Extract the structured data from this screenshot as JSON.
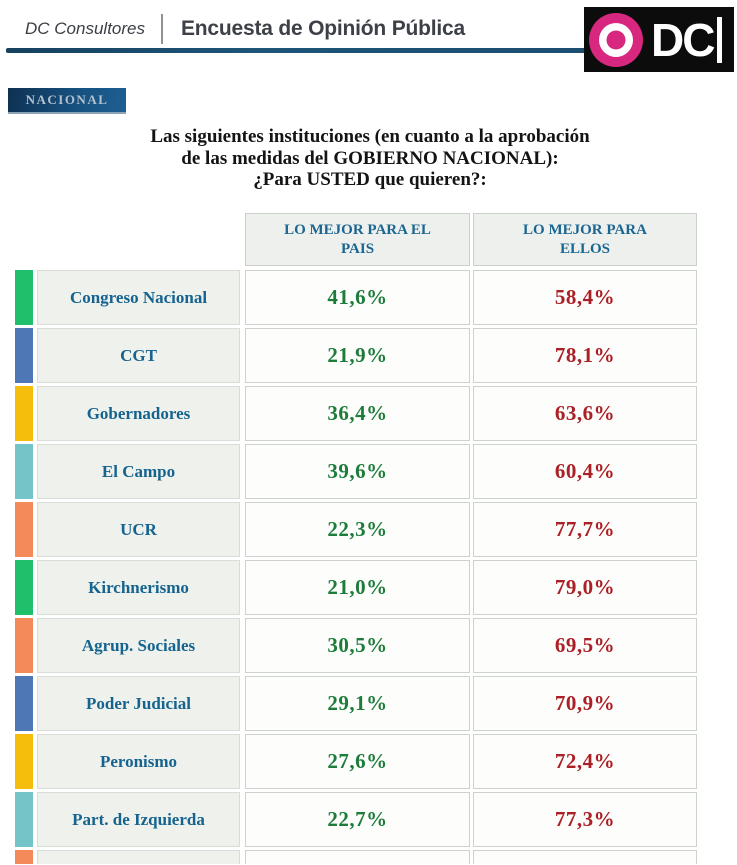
{
  "header": {
    "brand": "DC Consultores",
    "title": "Encuesta de Opinión Pública",
    "rule_color": "#1b4d70",
    "logo": {
      "text": "DC",
      "circle_color": "#d8277f",
      "bg_color": "#0c0c0c"
    }
  },
  "badge": {
    "label": "NACIONAL",
    "bg_from": "#0e3152",
    "bg_to": "#1d5f93",
    "text_color": "#b4c2cd"
  },
  "question": {
    "line1": "Las siguientes instituciones (en cuanto a la aprobación",
    "line2": "de las medidas del GOBIERNO NACIONAL):",
    "line3": "¿Para USTED que quieren?:"
  },
  "table": {
    "columns": [
      "LO MEJOR PARA EL PAIS",
      "LO MEJOR PARA ELLOS"
    ],
    "header_text_color": "#1a6690",
    "label_text_color": "#15638f",
    "pais_value_color": "#1e7c3b",
    "ellos_value_color": "#ab2026",
    "rows": [
      {
        "label": "Congreso Nacional",
        "bar_color": "#1fbf6b",
        "pais": "41,6%",
        "ellos": "58,4%"
      },
      {
        "label": "CGT",
        "bar_color": "#4d78b5",
        "pais": "21,9%",
        "ellos": "78,1%"
      },
      {
        "label": "Gobernadores",
        "bar_color": "#f5bd0c",
        "pais": "36,4%",
        "ellos": "63,6%"
      },
      {
        "label": "El Campo",
        "bar_color": "#73c5c7",
        "pais": "39,6%",
        "ellos": "60,4%"
      },
      {
        "label": "UCR",
        "bar_color": "#f48a5a",
        "pais": "22,3%",
        "ellos": "77,7%"
      },
      {
        "label": "Kirchnerismo",
        "bar_color": "#1fbf6b",
        "pais": "21,0%",
        "ellos": "79,0%"
      },
      {
        "label": "Agrup. Sociales",
        "bar_color": "#f48a5a",
        "pais": "30,5%",
        "ellos": "69,5%"
      },
      {
        "label": "Poder Judicial",
        "bar_color": "#4d78b5",
        "pais": "29,1%",
        "ellos": "70,9%"
      },
      {
        "label": "Peronismo",
        "bar_color": "#f5bd0c",
        "pais": "27,6%",
        "ellos": "72,4%"
      },
      {
        "label": "Part. de Izquierda",
        "bar_color": "#73c5c7",
        "pais": "22,7%",
        "ellos": "77,3%"
      }
    ],
    "partial_row_bar_color": "#f48a5a"
  },
  "chart_data": {
    "type": "table",
    "title": "Las siguientes instituciones (en cuanto a la aprobación de las medidas del GOBIERNO NACIONAL): ¿Para USTED que quieren?:",
    "categories": [
      "Congreso Nacional",
      "CGT",
      "Gobernadores",
      "El Campo",
      "UCR",
      "Kirchnerismo",
      "Agrup. Sociales",
      "Poder Judicial",
      "Peronismo",
      "Part. de Izquierda"
    ],
    "series": [
      {
        "name": "LO MEJOR PARA EL PAIS",
        "values": [
          41.6,
          21.9,
          36.4,
          39.6,
          22.3,
          21.0,
          30.5,
          29.1,
          27.6,
          22.7
        ]
      },
      {
        "name": "LO MEJOR PARA ELLOS",
        "values": [
          58.4,
          78.1,
          63.6,
          60.4,
          77.7,
          79.0,
          69.5,
          70.9,
          72.4,
          77.3
        ]
      }
    ],
    "value_unit": "%",
    "decimal_separator": ",",
    "legend_position": "column headers"
  }
}
